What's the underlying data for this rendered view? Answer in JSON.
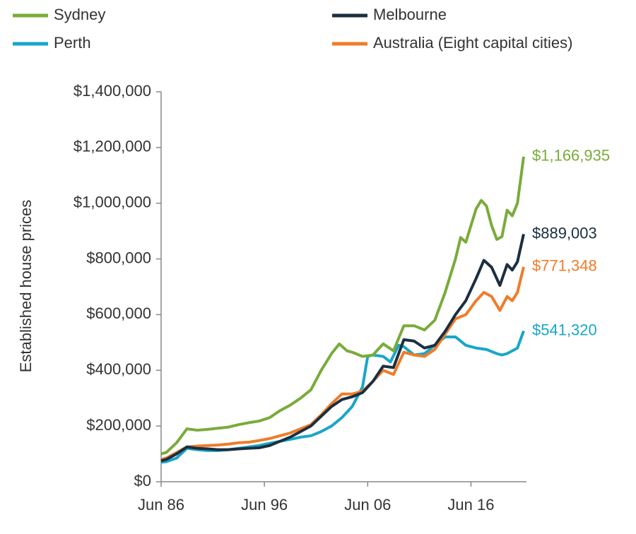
{
  "chart_data": {
    "type": "line",
    "y_label": "Established house prices",
    "xlim": [
      1986.5,
      2021.6
    ],
    "xticks": [
      {
        "value": 1986.5,
        "label": "Jun 86"
      },
      {
        "value": 1996.5,
        "label": "Jun 96"
      },
      {
        "value": 2006.5,
        "label": "Jun 06"
      },
      {
        "value": 2016.5,
        "label": "Jun 16"
      }
    ],
    "ylim": [
      0,
      1400000
    ],
    "yticks": [
      {
        "value": 0,
        "label": "$0"
      },
      {
        "value": 200000,
        "label": "$200,000"
      },
      {
        "value": 400000,
        "label": "$400,000"
      },
      {
        "value": 600000,
        "label": "$600,000"
      },
      {
        "value": 800000,
        "label": "$800,000"
      },
      {
        "value": 1000000,
        "label": "$1,000,000"
      },
      {
        "value": 1200000,
        "label": "$1,200,000"
      },
      {
        "value": 1400000,
        "label": "$1,400,000"
      }
    ],
    "grid": false,
    "series": [
      {
        "name": "Sydney",
        "color": "#7aab3a",
        "x": [
          1986.5,
          1987,
          1988,
          1989,
          1990,
          1991,
          1992,
          1993,
          1994,
          1995,
          1996,
          1997,
          1998,
          1999,
          2000,
          2001,
          2002,
          2003,
          2003.75,
          2004.5,
          2005,
          2006,
          2007,
          2008,
          2009,
          2010,
          2011,
          2012,
          2013,
          2014,
          2015,
          2015.5,
          2016,
          2017,
          2017.5,
          2018,
          2018.5,
          2019,
          2019.5,
          2020,
          2020.5,
          2021,
          2021.6
        ],
        "values": [
          100000,
          105000,
          140000,
          190000,
          185000,
          188000,
          192000,
          196000,
          205000,
          212000,
          218000,
          230000,
          255000,
          275000,
          300000,
          330000,
          400000,
          460000,
          495000,
          470000,
          465000,
          450000,
          455000,
          495000,
          470000,
          560000,
          560000,
          545000,
          580000,
          680000,
          800000,
          877000,
          860000,
          980000,
          1010000,
          990000,
          920000,
          870000,
          880000,
          975000,
          955000,
          1000000,
          1166935
        ],
        "value_labels": [
          null,
          null,
          null,
          null,
          null,
          null,
          null,
          null,
          null,
          null,
          null,
          null,
          null,
          null,
          null,
          null,
          null,
          null,
          null,
          null,
          null,
          null,
          null,
          null,
          null,
          null,
          null,
          null,
          null,
          null,
          null,
          null,
          null,
          null,
          null,
          null,
          null,
          null,
          null,
          null,
          null,
          null,
          "$1,166,935"
        ]
      },
      {
        "name": "Melbourne",
        "color": "#1b2f3f",
        "x": [
          1986.5,
          1987,
          1988,
          1989,
          1990,
          1991,
          1992,
          1993,
          1994,
          1995,
          1996,
          1997,
          1998,
          1999,
          2000,
          2001,
          2002,
          2003,
          2004,
          2005,
          2006,
          2007,
          2008,
          2009,
          2010,
          2011,
          2012,
          2013,
          2014,
          2015,
          2016,
          2017,
          2017.75,
          2018.5,
          2019.3,
          2020,
          2020.5,
          2021,
          2021.6
        ],
        "values": [
          75000,
          80000,
          100000,
          125000,
          120000,
          118000,
          115000,
          115000,
          118000,
          120000,
          122000,
          130000,
          145000,
          160000,
          180000,
          200000,
          235000,
          270000,
          295000,
          305000,
          320000,
          360000,
          415000,
          410000,
          510000,
          505000,
          480000,
          490000,
          540000,
          600000,
          650000,
          730000,
          795000,
          770000,
          705000,
          780000,
          760000,
          790000,
          889003
        ],
        "value_labels": [
          null,
          null,
          null,
          null,
          null,
          null,
          null,
          null,
          null,
          null,
          null,
          null,
          null,
          null,
          null,
          null,
          null,
          null,
          null,
          null,
          null,
          null,
          null,
          null,
          null,
          null,
          null,
          null,
          null,
          null,
          null,
          null,
          null,
          null,
          null,
          null,
          null,
          null,
          "$889,003"
        ]
      },
      {
        "name": "Perth",
        "color": "#19a6c9",
        "x": [
          1986.5,
          1987,
          1988,
          1989,
          1990,
          1991,
          1992,
          1993,
          1994,
          1995,
          1996,
          1997,
          1998,
          1999,
          2000,
          2001,
          2002,
          2003,
          2004,
          2005,
          2006,
          2006.5,
          2007,
          2008,
          2008.7,
          2009.5,
          2010,
          2011,
          2012,
          2013,
          2014,
          2015,
          2016,
          2017,
          2018,
          2019,
          2019.5,
          2020,
          2021,
          2021.6
        ],
        "values": [
          70000,
          72000,
          85000,
          120000,
          115000,
          112000,
          112000,
          115000,
          120000,
          125000,
          130000,
          138000,
          145000,
          152000,
          160000,
          165000,
          180000,
          200000,
          230000,
          270000,
          340000,
          450000,
          455000,
          450000,
          430000,
          490000,
          485000,
          455000,
          460000,
          490000,
          520000,
          520000,
          490000,
          480000,
          475000,
          460000,
          455000,
          460000,
          480000,
          541320
        ],
        "value_labels": [
          null,
          null,
          null,
          null,
          null,
          null,
          null,
          null,
          null,
          null,
          null,
          null,
          null,
          null,
          null,
          null,
          null,
          null,
          null,
          null,
          null,
          null,
          null,
          null,
          null,
          null,
          null,
          null,
          null,
          null,
          null,
          null,
          null,
          null,
          null,
          null,
          null,
          null,
          null,
          "$541,320"
        ]
      },
      {
        "name": "Australia (Eight capital cities)",
        "color": "#f07c2a",
        "x": [
          1986.5,
          1987,
          1988,
          1989,
          1990,
          1991,
          1992,
          1993,
          1994,
          1995,
          1996,
          1997,
          1998,
          1999,
          2000,
          2001,
          2002,
          2003,
          2004,
          2005,
          2006,
          2007,
          2008,
          2009,
          2010,
          2011,
          2012,
          2013,
          2014,
          2015,
          2016,
          2017,
          2017.75,
          2018.5,
          2019.3,
          2020,
          2020.5,
          2021,
          2021.6
        ],
        "values": [
          80000,
          85000,
          105000,
          125000,
          128000,
          130000,
          132000,
          135000,
          140000,
          142000,
          148000,
          155000,
          165000,
          175000,
          190000,
          205000,
          240000,
          280000,
          315000,
          315000,
          325000,
          360000,
          400000,
          385000,
          465000,
          455000,
          450000,
          475000,
          530000,
          585000,
          600000,
          650000,
          680000,
          665000,
          615000,
          665000,
          650000,
          680000,
          771348
        ],
        "value_labels": [
          null,
          null,
          null,
          null,
          null,
          null,
          null,
          null,
          null,
          null,
          null,
          null,
          null,
          null,
          null,
          null,
          null,
          null,
          null,
          null,
          null,
          null,
          null,
          null,
          null,
          null,
          null,
          null,
          null,
          null,
          null,
          null,
          null,
          null,
          null,
          null,
          null,
          null,
          "$771,348"
        ]
      }
    ]
  }
}
